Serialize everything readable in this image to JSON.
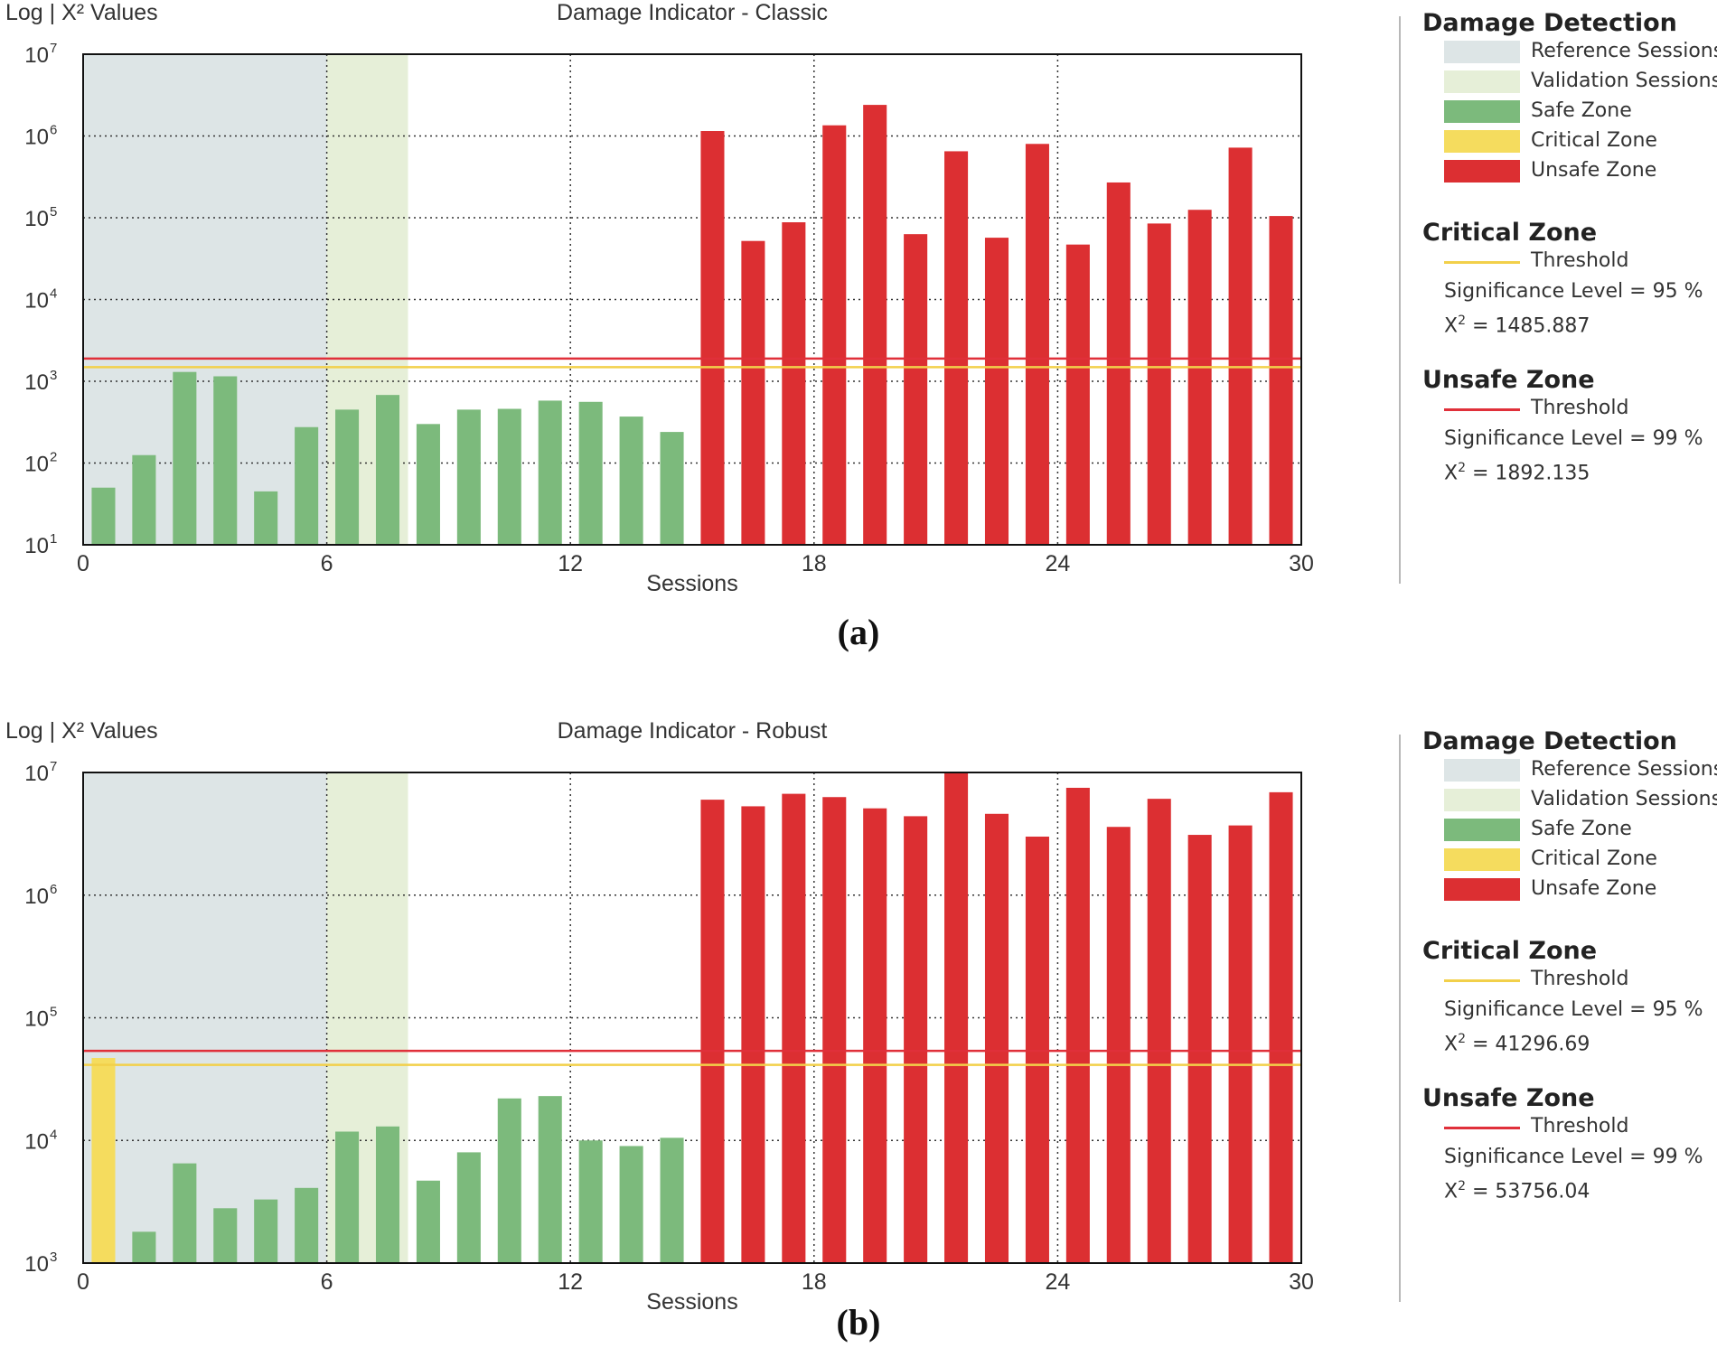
{
  "chart_data": [
    {
      "type": "bar",
      "panel_label": "(a)",
      "title": "Damage Indicator - Classic",
      "ylabel": "Log | X² Values",
      "xlabel": "Sessions",
      "yscale": "log",
      "ylim_exp": [
        1,
        7
      ],
      "ytick_exponents": [
        1,
        2,
        3,
        4,
        5,
        6,
        7
      ],
      "ytick_labels": [
        "10",
        "10",
        "10",
        "10",
        "10",
        "10",
        "10"
      ],
      "ytick_sup": [
        "1",
        "2",
        "3",
        "4",
        "5",
        "6",
        "7"
      ],
      "xlim": [
        0,
        30
      ],
      "xticks": [
        0,
        6,
        12,
        18,
        24,
        30
      ],
      "xtick_labels": [
        "0",
        "6",
        "12",
        "18",
        "24",
        "30"
      ],
      "reference_sessions": [
        0,
        6
      ],
      "validation_sessions": [
        6,
        8
      ],
      "values": [
        50,
        125,
        1300,
        1150,
        45,
        275,
        450,
        680,
        300,
        450,
        460,
        580,
        560,
        370,
        240,
        1150000,
        52000,
        88000,
        1350000,
        2400000,
        63000,
        650000,
        57000,
        800000,
        47000,
        270000,
        85000,
        125000,
        720000,
        105000
      ],
      "zones": [
        "safe",
        "safe",
        "safe",
        "safe",
        "safe",
        "safe",
        "safe",
        "safe",
        "safe",
        "safe",
        "safe",
        "safe",
        "safe",
        "safe",
        "safe",
        "unsafe",
        "unsafe",
        "unsafe",
        "unsafe",
        "unsafe",
        "unsafe",
        "unsafe",
        "unsafe",
        "unsafe",
        "unsafe",
        "unsafe",
        "unsafe",
        "unsafe",
        "unsafe",
        "unsafe"
      ],
      "critical_threshold": 1485.887,
      "unsafe_threshold": 1892.135,
      "legend": {
        "title": "Damage Detection",
        "items": [
          "Reference Sessions",
          "Validation Sessions",
          "Safe Zone",
          "Critical Zone",
          "Unsafe Zone"
        ],
        "critical": {
          "title": "Critical Zone",
          "threshold_label": "Threshold",
          "significance": "Significance Level = 95 %",
          "chi_label": "X",
          "chi_sup": "2",
          "chi_value": " = 1485.887"
        },
        "unsafe": {
          "title": "Unsafe Zone",
          "threshold_label": "Threshold",
          "significance": "Significance Level = 99 %",
          "chi_label": "X",
          "chi_sup": "2",
          "chi_value": " = 1892.135"
        }
      }
    },
    {
      "type": "bar",
      "panel_label": "(b)",
      "title": "Damage Indicator - Robust",
      "ylabel": "Log | X² Values",
      "xlabel": "Sessions",
      "yscale": "log",
      "ylim_exp": [
        3,
        7
      ],
      "ytick_exponents": [
        3,
        4,
        5,
        6,
        7
      ],
      "ytick_labels": [
        "10",
        "10",
        "10",
        "10",
        "10"
      ],
      "ytick_sup": [
        "3",
        "4",
        "5",
        "6",
        "7"
      ],
      "xlim": [
        0,
        30
      ],
      "xticks": [
        0,
        6,
        12,
        18,
        24,
        30
      ],
      "xtick_labels": [
        "0",
        "6",
        "12",
        "18",
        "24",
        "30"
      ],
      "reference_sessions": [
        0,
        6
      ],
      "validation_sessions": [
        6,
        8
      ],
      "values": [
        47000,
        1800,
        6500,
        2800,
        3300,
        4100,
        11800,
        13000,
        4700,
        8000,
        22000,
        23000,
        10000,
        9000,
        10500,
        6000000,
        5300000,
        6700000,
        6300000,
        5100000,
        4400000,
        10000000,
        4600000,
        3000000,
        7500000,
        3600000,
        6100000,
        3100000,
        3700000,
        6900000
      ],
      "zones": [
        "critical",
        "safe",
        "safe",
        "safe",
        "safe",
        "safe",
        "safe",
        "safe",
        "safe",
        "safe",
        "safe",
        "safe",
        "safe",
        "safe",
        "safe",
        "unsafe",
        "unsafe",
        "unsafe",
        "unsafe",
        "unsafe",
        "unsafe",
        "unsafe",
        "unsafe",
        "unsafe",
        "unsafe",
        "unsafe",
        "unsafe",
        "unsafe",
        "unsafe",
        "unsafe"
      ],
      "critical_threshold": 41296.69,
      "unsafe_threshold": 53756.04,
      "legend": {
        "title": "Damage Detection",
        "items": [
          "Reference Sessions",
          "Validation Sessions",
          "Safe Zone",
          "Critical Zone",
          "Unsafe Zone"
        ],
        "critical": {
          "title": "Critical Zone",
          "threshold_label": "Threshold",
          "significance": "Significance Level = 95 %",
          "chi_label": "X",
          "chi_sup": "2",
          "chi_value": " = 41296.69"
        },
        "unsafe": {
          "title": "Unsafe Zone",
          "threshold_label": "Threshold",
          "significance": "Significance Level = 99 %",
          "chi_label": "X",
          "chi_sup": "2",
          "chi_value": " = 53756.04"
        }
      }
    }
  ],
  "colors": {
    "reference": "#dde5e6",
    "validation": "#e6efd8",
    "safe": "#7cba7c",
    "critical": "#f5dc5e",
    "unsafe": "#dc2f32",
    "critical_line": "#f2d04a",
    "unsafe_line": "#e0303a"
  }
}
